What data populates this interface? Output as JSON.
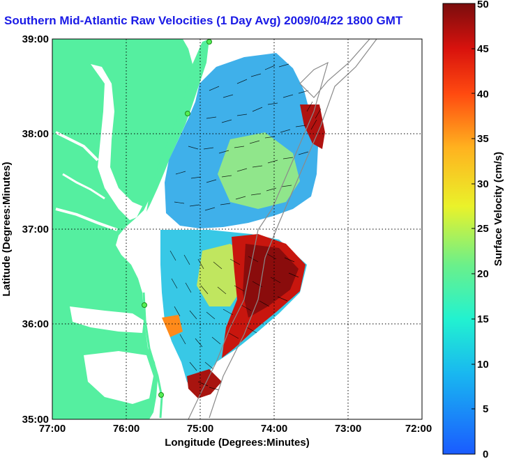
{
  "title": "Southern Mid-Atlantic Raw Velocities (1 Day Avg) 2009/04/22 1800 GMT",
  "xlabel": "Longitude (Degrees:Minutes)",
  "ylabel": "Latitude (Degrees:Minutes)",
  "colorbar_label": "Surface Velocity (cm/s)",
  "x_ticks": [
    "77:00",
    "76:00",
    "75:00",
    "74:00",
    "73:00",
    "72:00"
  ],
  "y_ticks": [
    "39:00",
    "38:00",
    "37:00",
    "36:00",
    "35:00"
  ],
  "colorbar_ticks": [
    "50",
    "45",
    "40",
    "35",
    "30",
    "25",
    "20",
    "15",
    "10",
    "5",
    "0"
  ],
  "colors": {
    "land": "#55efa0",
    "title": "#1a1ae6",
    "grid": "#000000"
  },
  "map": {
    "lon_range": [
      -77,
      -72
    ],
    "lat_range": [
      35,
      39
    ],
    "colorbar_range": [
      0,
      50
    ],
    "grid": true
  }
}
